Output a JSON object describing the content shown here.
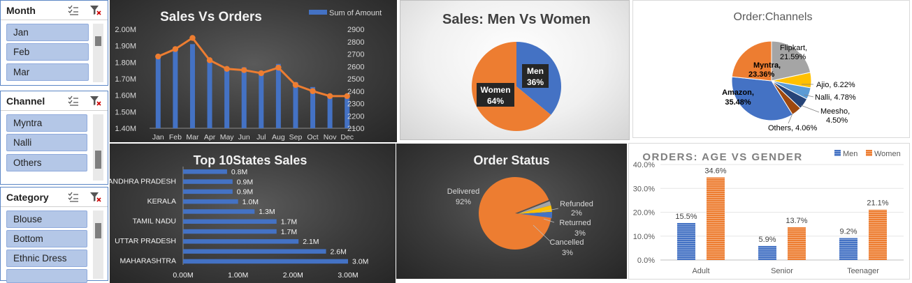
{
  "slicers": {
    "month": {
      "title": "Month",
      "items": [
        "Jan",
        "Feb",
        "Mar"
      ]
    },
    "channel": {
      "title": "Channel",
      "items": [
        "Myntra",
        "Nalli",
        "Others"
      ]
    },
    "category": {
      "title": "Category",
      "items": [
        "Blouse",
        "Bottom",
        "Ethnic Dress"
      ]
    }
  },
  "charts": {
    "sales_orders": {
      "title": "Sales Vs Orders",
      "legend": "Sum of Amount",
      "categories": [
        "Jan",
        "Feb",
        "Mar",
        "Apr",
        "May",
        "Jun",
        "Jul",
        "Aug",
        "Sep",
        "Oct",
        "Nov",
        "Dec"
      ],
      "sales_ticks": [
        "2.00M",
        "1.90M",
        "1.80M",
        "1.70M",
        "1.60M",
        "1.50M",
        "1.40M"
      ],
      "orders_ticks": [
        "2900",
        "2800",
        "2700",
        "2600",
        "2500",
        "2400",
        "2300",
        "2200",
        "2100"
      ]
    },
    "men_women": {
      "title": "Sales: Men Vs Women",
      "men_label": "Men",
      "men_pct": "36%",
      "women_label": "Women",
      "women_pct": "64%"
    },
    "channels": {
      "title": "Order:Channels",
      "labels": {
        "flipkart_name": "Flipkart,",
        "flipkart_pct": "21.59%",
        "ajio": "Ajio, 6.22%",
        "nalli": "Nalli, 4.78%",
        "meesho_name": "Meesho,",
        "meesho_pct": "4.50%",
        "others": "Others, 4.06%",
        "amazon_name": "Amazon,",
        "amazon_pct": "35.48%",
        "myntra_name": "Myntra,",
        "myntra_pct": "23.36%"
      }
    },
    "top_states": {
      "title": "Top 10States Sales",
      "state_labels": [
        "ANDHRA PRADESH",
        "KERALA",
        "TAMIL NADU",
        "UTTAR PRADESH",
        "MAHARASHTRA"
      ],
      "value_labels": [
        "0.8M",
        "0.9M",
        "0.9M",
        "1.0M",
        "1.3M",
        "1.7M",
        "1.7M",
        "2.1M",
        "2.6M",
        "3.0M"
      ],
      "x_ticks": [
        "0.00M",
        "1.00M",
        "2.00M",
        "3.00M"
      ]
    },
    "order_status": {
      "title": "Order Status",
      "delivered_name": "Delivered",
      "delivered_pct": "92%",
      "refunded_name": "Refunded",
      "refunded_pct": "2%",
      "returned_name": "Returned",
      "returned_pct": "3%",
      "cancelled_name": "Cancelled",
      "cancelled_pct": "3%"
    },
    "age_gender": {
      "title": "ORDERS: AGE VS GENDER",
      "legend_men": "Men",
      "legend_women": "Women",
      "y_ticks": [
        "40.0%",
        "30.0%",
        "20.0%",
        "10.0%",
        "0.0%"
      ],
      "categories": [
        "Adult",
        "Senior",
        "Teenager"
      ],
      "men_labels": [
        "15.5%",
        "5.9%",
        "9.2%"
      ],
      "women_labels": [
        "34.6%",
        "13.7%",
        "21.1%"
      ]
    }
  },
  "colors": {
    "blue": "#4472c4",
    "orange": "#ed7d31",
    "grey": "#a5a5a5",
    "gold": "#ffc000",
    "lightblue": "#5b9bd5",
    "darkblue": "#264478"
  },
  "chart_data": [
    {
      "type": "bar",
      "title": "Sales Vs Orders",
      "categories": [
        "Jan",
        "Feb",
        "Mar",
        "Apr",
        "May",
        "Jun",
        "Jul",
        "Aug",
        "Sep",
        "Oct",
        "Nov",
        "Dec"
      ],
      "series": [
        {
          "name": "Sum of Amount",
          "values": [
            1.83,
            1.88,
            1.91,
            1.82,
            1.77,
            1.77,
            1.74,
            1.79,
            1.68,
            1.65,
            1.6,
            1.6
          ]
        },
        {
          "values": [
            2680,
            2740,
            2830,
            2650,
            2580,
            2570,
            2545,
            2590,
            2450,
            2400,
            2360,
            2360
          ]
        }
      ],
      "ylim": [
        1.4,
        2.0
      ],
      "y2lim": [
        2100,
        2900
      ]
    },
    {
      "type": "pie",
      "title": "Sales: Men Vs Women",
      "categories": [
        "Men",
        "Women"
      ],
      "values": [
        36,
        64
      ]
    },
    {
      "type": "pie",
      "title": "Order:Channels",
      "categories": [
        "Amazon",
        "Myntra",
        "Flipkart",
        "Ajio",
        "Nalli",
        "Meesho",
        "Others"
      ],
      "values": [
        35.48,
        23.36,
        21.59,
        6.22,
        4.78,
        4.5,
        4.06
      ]
    },
    {
      "type": "bar",
      "title": "Top 10States Sales",
      "values": [
        0.8,
        0.9,
        0.9,
        1.0,
        1.3,
        1.7,
        1.7,
        2.1,
        2.6,
        3.0
      ],
      "xlim": [
        0,
        3
      ]
    },
    {
      "type": "pie",
      "title": "Order Status",
      "categories": [
        "Delivered",
        "Refunded",
        "Returned",
        "Cancelled"
      ],
      "values": [
        92,
        2,
        3,
        3
      ]
    },
    {
      "type": "bar",
      "title": "ORDERS: AGE VS GENDER",
      "categories": [
        "Adult",
        "Senior",
        "Teenager"
      ],
      "series": [
        {
          "name": "Men",
          "values": [
            15.5,
            5.9,
            9.2
          ]
        },
        {
          "name": "Women",
          "values": [
            34.6,
            13.7,
            21.1
          ]
        }
      ],
      "ylim": [
        0,
        40
      ]
    }
  ]
}
